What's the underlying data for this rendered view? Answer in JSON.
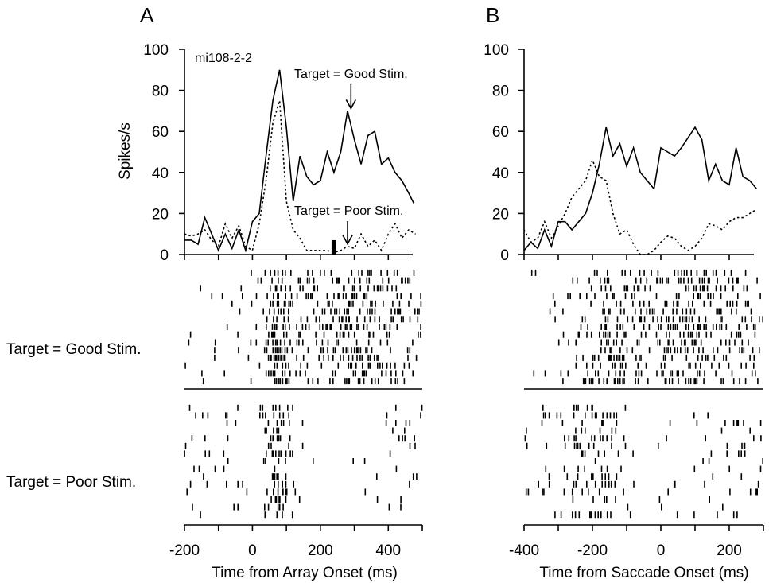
{
  "row_labels": {
    "good": "Target = Good Stim.",
    "poor": "Target = Poor Stim."
  },
  "chart_data": [
    {
      "type": "line",
      "panel": "A",
      "annotation_id": "mi108-2-2",
      "ylabel": "Spikes/s",
      "xlabel": "Time from Array Onset (ms)",
      "xlim": [
        -200,
        500
      ],
      "ylim": [
        0,
        100
      ],
      "xticks": [
        -200,
        -100,
        0,
        100,
        200,
        300,
        400,
        500
      ],
      "xtick_labels": [
        "-200",
        "",
        "0",
        "",
        "200",
        "",
        "400",
        ""
      ],
      "yticks": [
        0,
        20,
        40,
        60,
        80,
        100
      ],
      "ytick_labels": [
        "0",
        "20",
        "40",
        "60",
        "80",
        "100"
      ],
      "annotations": [
        {
          "text": "Target = Good Stim.",
          "x": 290,
          "y": 70
        },
        {
          "text": "Target = Poor Stim.",
          "x": 280,
          "y": 4
        }
      ],
      "marker": {
        "x": 240,
        "height": 7
      },
      "series": [
        {
          "style": "solid",
          "x": [
            -200,
            -180,
            -160,
            -140,
            -120,
            -100,
            -80,
            -60,
            -40,
            -20,
            0,
            20,
            40,
            60,
            80,
            100,
            120,
            140,
            160,
            180,
            200,
            220,
            240,
            260,
            280,
            300,
            320,
            340,
            360,
            380,
            400,
            420,
            440,
            460,
            475
          ],
          "values": [
            7,
            7,
            5,
            18,
            10,
            2,
            10,
            3,
            12,
            2,
            16,
            20,
            48,
            75,
            90,
            62,
            26,
            48,
            38,
            34,
            36,
            50,
            40,
            50,
            70,
            56,
            44,
            58,
            60,
            44,
            47,
            40,
            36,
            30,
            25
          ]
        },
        {
          "style": "dotted",
          "x": [
            -200,
            -180,
            -160,
            -140,
            -120,
            -100,
            -80,
            -60,
            -40,
            -20,
            0,
            20,
            40,
            60,
            80,
            100,
            120,
            140,
            160,
            180,
            200,
            220,
            240,
            260,
            280,
            300,
            320,
            340,
            360,
            380,
            400,
            420,
            440,
            460,
            480
          ],
          "values": [
            10,
            9,
            10,
            12,
            7,
            4,
            15,
            8,
            14,
            4,
            2,
            15,
            36,
            64,
            75,
            26,
            12,
            8,
            2,
            2,
            2,
            2,
            1,
            2,
            4,
            3,
            10,
            4,
            7,
            2,
            10,
            15,
            8,
            12,
            10
          ]
        }
      ]
    },
    {
      "type": "line",
      "panel": "B",
      "ylabel": "",
      "xlabel": "Time from Saccade Onset (ms)",
      "xlim": [
        -400,
        300
      ],
      "ylim": [
        0,
        100
      ],
      "xticks": [
        -400,
        -300,
        -200,
        -100,
        0,
        100,
        200,
        300
      ],
      "xtick_labels": [
        "-400",
        "",
        "-200",
        "",
        "0",
        "",
        "200",
        ""
      ],
      "yticks": [
        0,
        20,
        40,
        60,
        80,
        100
      ],
      "ytick_labels": [
        "0",
        "20",
        "40",
        "60",
        "80",
        "100"
      ],
      "series": [
        {
          "style": "solid",
          "x": [
            -400,
            -380,
            -360,
            -340,
            -320,
            -300,
            -280,
            -260,
            -240,
            -220,
            -200,
            -180,
            -160,
            -140,
            -120,
            -100,
            -80,
            -60,
            -40,
            -20,
            0,
            20,
            40,
            60,
            80,
            100,
            120,
            140,
            160,
            180,
            200,
            220,
            240,
            260,
            280
          ],
          "values": [
            2,
            6,
            3,
            12,
            4,
            16,
            16,
            12,
            16,
            20,
            30,
            44,
            62,
            48,
            54,
            43,
            52,
            40,
            36,
            32,
            52,
            50,
            48,
            52,
            57,
            62,
            56,
            36,
            44,
            36,
            34,
            52,
            38,
            36,
            32
          ]
        },
        {
          "style": "dotted",
          "x": [
            -400,
            -380,
            -360,
            -340,
            -320,
            -300,
            -280,
            -260,
            -240,
            -220,
            -200,
            -180,
            -160,
            -140,
            -120,
            -100,
            -80,
            -60,
            -40,
            -20,
            0,
            20,
            40,
            60,
            80,
            100,
            120,
            140,
            160,
            180,
            200,
            220,
            240,
            260,
            280
          ],
          "values": [
            12,
            6,
            8,
            16,
            8,
            14,
            20,
            28,
            32,
            36,
            46,
            38,
            36,
            20,
            10,
            12,
            5,
            0,
            0,
            2,
            6,
            9,
            8,
            4,
            2,
            4,
            8,
            15,
            14,
            12,
            16,
            18,
            18,
            20,
            22
          ]
        }
      ]
    }
  ]
}
